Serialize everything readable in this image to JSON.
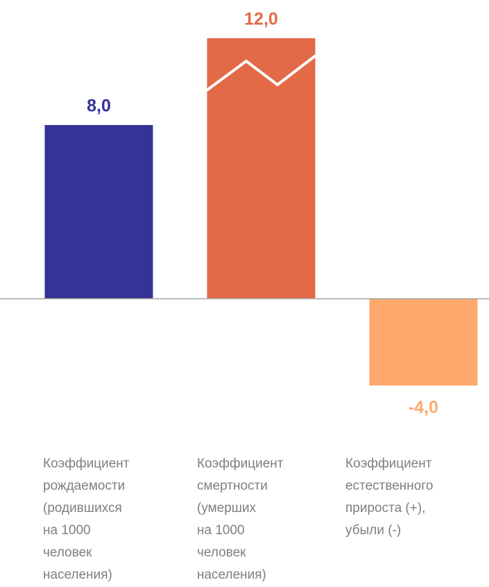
{
  "chart_data": {
    "type": "bar",
    "categories": [
      [
        "Коэффициент",
        "рождаемости",
        "(родившихся",
        "на 1000",
        "человек",
        "населения)"
      ],
      [
        "Коэффициент",
        "смертности",
        "(умерших",
        "на 1000",
        "человек",
        "населения)"
      ],
      [
        "Коэффициент",
        "естественного",
        "прироста (+),",
        "убыли (-)"
      ]
    ],
    "values": [
      8.0,
      12.0,
      -4.0
    ],
    "value_labels": [
      "8,0",
      "12,0",
      "-4,0"
    ],
    "colors": [
      "#363396",
      "#e36a47",
      "#fea86e"
    ],
    "ylim": [
      -4,
      12
    ]
  }
}
